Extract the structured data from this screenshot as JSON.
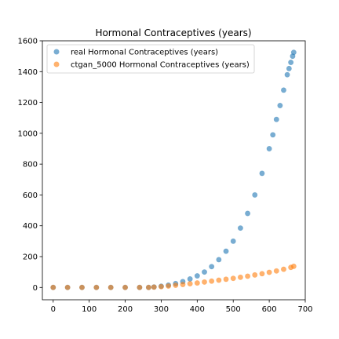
{
  "chart_data": {
    "type": "scatter",
    "title": "Hormonal Contraceptives (years)",
    "xlabel": "",
    "ylabel": "",
    "xlim": [
      -30,
      700
    ],
    "ylim": [
      -80,
      1600
    ],
    "x_ticks": [
      0,
      100,
      200,
      300,
      400,
      500,
      600,
      700
    ],
    "y_ticks": [
      0,
      200,
      400,
      600,
      800,
      1000,
      1200,
      1400,
      1600
    ],
    "grid": false,
    "legend_position": "top-left",
    "series": [
      {
        "name": "real Hormonal Contraceptives (years)",
        "color": "#1f77b4",
        "x": [
          0,
          40,
          80,
          120,
          160,
          200,
          240,
          265,
          280,
          300,
          320,
          340,
          360,
          380,
          400,
          420,
          440,
          460,
          480,
          500,
          520,
          540,
          560,
          580,
          600,
          610,
          620,
          630,
          640,
          650,
          655,
          660,
          665,
          668
        ],
        "y": [
          0,
          0,
          0,
          0,
          0,
          0,
          0,
          0,
          3,
          8,
          15,
          25,
          38,
          55,
          75,
          100,
          135,
          180,
          235,
          300,
          385,
          480,
          600,
          740,
          900,
          990,
          1090,
          1180,
          1280,
          1380,
          1420,
          1460,
          1500,
          1525
        ]
      },
      {
        "name": "ctgan_5000 Hormonal Contraceptives (years)",
        "color": "#ff7f0e",
        "x": [
          0,
          40,
          80,
          120,
          160,
          200,
          240,
          265,
          280,
          300,
          320,
          340,
          360,
          380,
          400,
          420,
          440,
          460,
          480,
          500,
          520,
          540,
          560,
          580,
          600,
          620,
          640,
          660,
          668
        ],
        "y": [
          0,
          0,
          0,
          0,
          0,
          0,
          0,
          0,
          2,
          5,
          9,
          14,
          19,
          24,
          29,
          35,
          41,
          47,
          53,
          59,
          66,
          73,
          81,
          89,
          98,
          107,
          118,
          130,
          137
        ]
      }
    ]
  }
}
